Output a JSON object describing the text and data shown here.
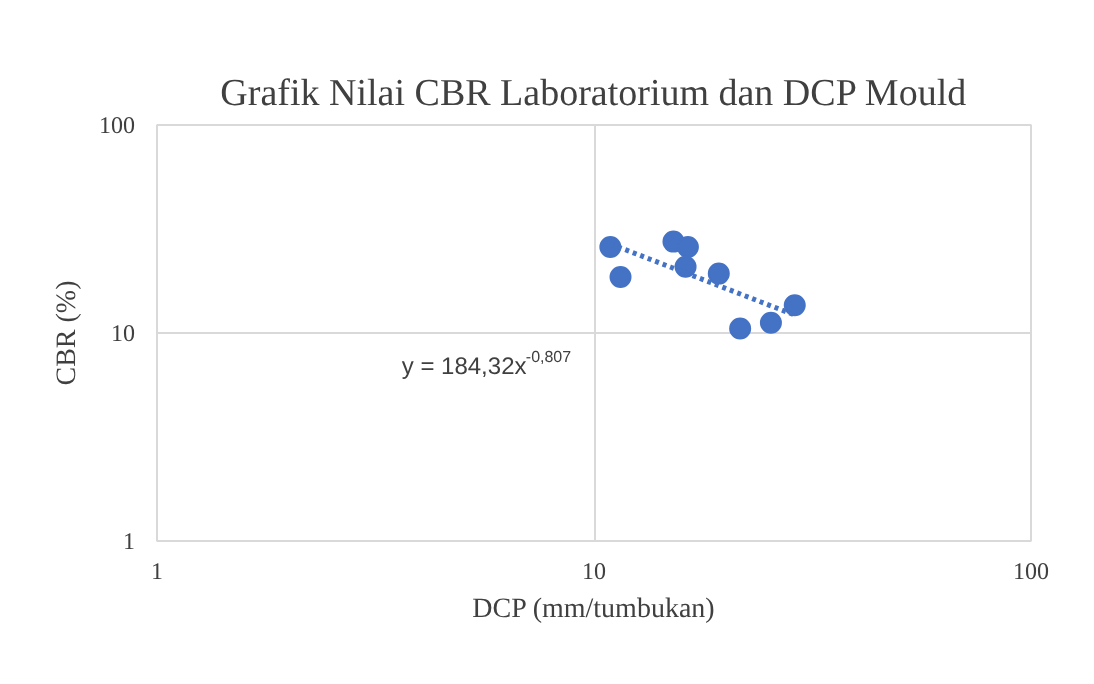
{
  "chart_data": {
    "type": "scatter",
    "title": "Grafik Nilai CBR Laboratorium dan DCP Mould",
    "xlabel": "DCP (mm/tumbukan)",
    "ylabel": "CBR (%)",
    "x": [
      10.9,
      11.5,
      15.2,
      16.4,
      16.2,
      19.3,
      21.6,
      25.4,
      28.8
    ],
    "series": [
      {
        "color": "#4472c4",
        "values": [
          25.9,
          18.6,
          27.5,
          25.9,
          20.8,
          19.3,
          10.5,
          11.2,
          13.6
        ]
      },
      {
        "type": "line",
        "color": "#4472c4",
        "line_style": "dotted",
        "marker": "none",
        "x": [
          10.9,
          15,
          20,
          28.8
        ],
        "values": [
          26.8,
          20.7,
          16.4,
          12.2
        ]
      }
    ],
    "xlim": [
      1,
      100
    ],
    "ylim": [
      1,
      100
    ],
    "xticks": [
      1,
      10,
      100
    ],
    "yticks": [
      1,
      10,
      100
    ],
    "log": "xy",
    "grid": true,
    "marker": "circle",
    "annotations": [
      "y = 184,32x$^{-0,807}$"
    ]
  }
}
